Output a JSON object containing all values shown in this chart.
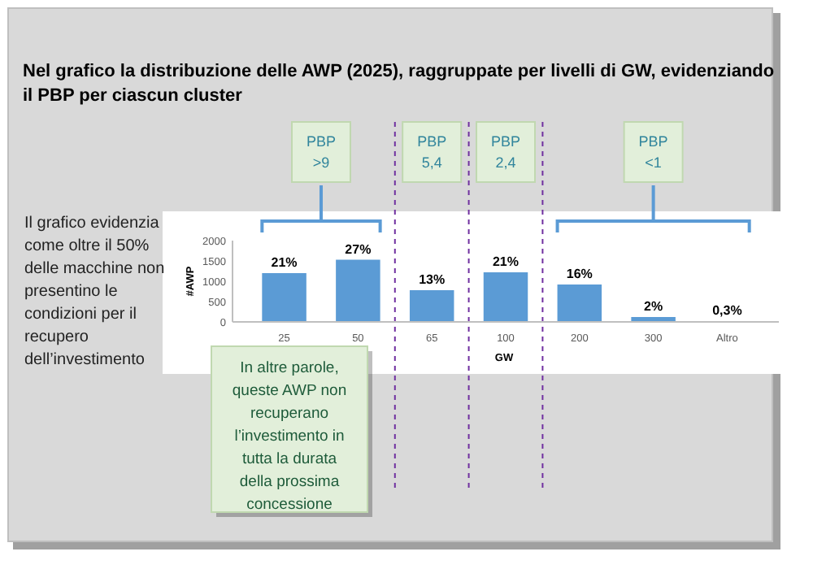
{
  "chart_data": {
    "type": "bar",
    "title": "Nel grafico la distribuzione delle AWP (2025), raggruppate per livelli di GW, evidenziando il PBP per ciascun cluster",
    "categories": [
      "25",
      "50",
      "65",
      "100",
      "200",
      "300",
      "Altro"
    ],
    "values": [
      1200,
      1530,
      780,
      1220,
      920,
      120,
      20
    ],
    "color": "#5b9bd5",
    "xlabel": "GW",
    "ylabel": "#AWP",
    "ylim": [
      0,
      2000
    ],
    "yticks": [
      0,
      500,
      1000,
      1500,
      2000
    ],
    "annotations": [
      "Il grafico evidenzia come oltre il 50% delle macchine non presentino le condizioni per il recupero dell’investimento",
      "In altre parole, queste AWP non recuperano l’investimento in tutta la durata della prossima concessione",
      "PBP\n>9",
      "PBP\n5,4",
      "PBP\n2,4",
      "PBP\n<1",
      {
        "text": "21%",
        "x": "25",
        "y": 1200
      },
      {
        "text": "27%",
        "x": "50",
        "y": 1530
      },
      {
        "text": "13%",
        "x": "65",
        "y": 780
      },
      {
        "text": "21%",
        "x": "100",
        "y": 1220
      },
      {
        "text": "16%",
        "x": "200",
        "y": 920
      },
      {
        "text": "2%",
        "x": "300",
        "y": 120
      },
      {
        "text": "0,3%",
        "x": "Altro",
        "y": 20
      }
    ]
  }
}
